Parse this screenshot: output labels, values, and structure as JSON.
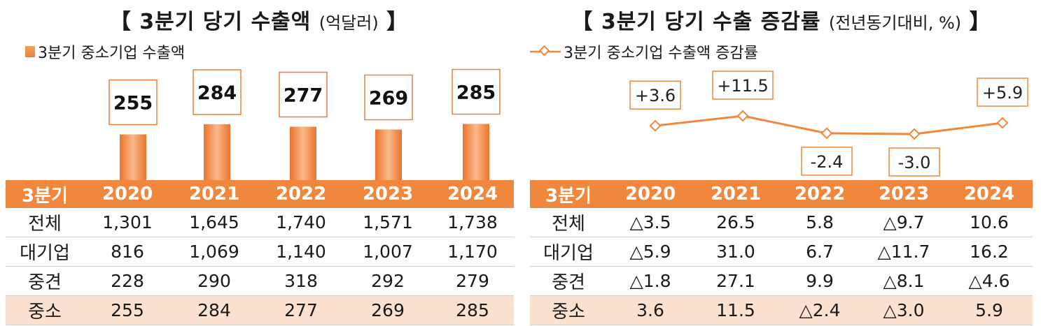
{
  "left": {
    "title_main": "3분기 당기 수출액",
    "title_unit": "(억달러)",
    "bracket_open": "【",
    "bracket_close": "】",
    "legend": "3분기 중소기업 수출액",
    "color": "#f0873c",
    "table": {
      "header": [
        "3분기",
        "2020",
        "2021",
        "2022",
        "2023",
        "2024"
      ],
      "rows": [
        [
          "전체",
          "1,301",
          "1,645",
          "1,740",
          "1,571",
          "1,738"
        ],
        [
          "대기업",
          "816",
          "1,069",
          "1,140",
          "1,007",
          "1,170"
        ],
        [
          "중견",
          "228",
          "290",
          "318",
          "292",
          "279"
        ],
        [
          "중소",
          "255",
          "284",
          "277",
          "269",
          "285"
        ]
      ]
    }
  },
  "right": {
    "title_main": "3분기 당기 수출 증감률",
    "title_unit": "(전년동기대비, %)",
    "bracket_open": "【",
    "bracket_close": "】",
    "legend": "3분기 중소기업 수출액 증감률",
    "color": "#f0873c",
    "table": {
      "header": [
        "3분기",
        "2020",
        "2021",
        "2022",
        "2023",
        "2024"
      ],
      "rows": [
        [
          "전체",
          "△3.5",
          "26.5",
          "5.8",
          "△9.7",
          "10.6"
        ],
        [
          "대기업",
          "△5.9",
          "31.0",
          "6.7",
          "△11.7",
          "16.2"
        ],
        [
          "중견",
          "△1.8",
          "27.1",
          "9.9",
          "△8.1",
          "△4.6"
        ],
        [
          "중소",
          "3.6",
          "11.5",
          "△2.4",
          "△3.0",
          "5.9"
        ]
      ]
    }
  },
  "chart_data": [
    {
      "type": "bar",
      "title": "3분기 당기 수출액 (억달러)",
      "categories": [
        "2020",
        "2021",
        "2022",
        "2023",
        "2024"
      ],
      "series": [
        {
          "name": "3분기 중소기업 수출액",
          "values": [
            255,
            284,
            277,
            269,
            285
          ]
        }
      ],
      "data_labels": [
        "255",
        "284",
        "277",
        "269",
        "285"
      ]
    },
    {
      "type": "line",
      "title": "3분기 당기 수출 증감률 (전년동기대비, %)",
      "categories": [
        "2020",
        "2021",
        "2022",
        "2023",
        "2024"
      ],
      "series": [
        {
          "name": "3분기 중소기업 수출액 증감률",
          "values": [
            3.6,
            11.5,
            -2.4,
            -3.0,
            5.9
          ]
        }
      ],
      "data_labels": [
        "+3.6",
        "+11.5",
        "-2.4",
        "-3.0",
        "+5.9"
      ]
    }
  ]
}
